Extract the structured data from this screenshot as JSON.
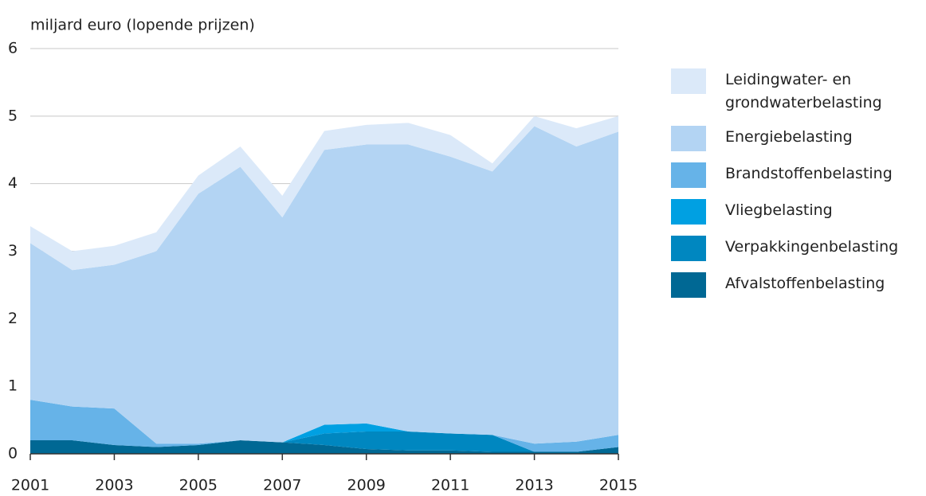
{
  "chart_data": {
    "type": "stacked_area",
    "y_axis_label": "miljard euro (lopende prijzen)",
    "x": [
      2001,
      2002,
      2003,
      2004,
      2005,
      2006,
      2007,
      2008,
      2009,
      2010,
      2011,
      2012,
      2013,
      2014,
      2015
    ],
    "xlim": [
      2001,
      2015
    ],
    "xticks": [
      2001,
      2003,
      2005,
      2007,
      2009,
      2011,
      2013,
      2015
    ],
    "ylim": [
      0,
      6
    ],
    "yticks": [
      0,
      1,
      2,
      3,
      4,
      5,
      6
    ],
    "grid": true,
    "legend": "right",
    "series": [
      {
        "name": "Leidingwater- en grondwaterbelasting",
        "color": "#dbe9f9",
        "values": [
          0.25,
          0.28,
          0.28,
          0.28,
          0.27,
          0.3,
          0.32,
          0.28,
          0.29,
          0.32,
          0.32,
          0.12,
          0.15,
          0.27,
          0.23
        ]
      },
      {
        "name": "Energiebelasting",
        "color": "#b3d4f3",
        "values": [
          2.32,
          2.02,
          2.13,
          2.85,
          3.7,
          4.05,
          3.33,
          4.07,
          4.13,
          4.25,
          4.1,
          3.9,
          4.7,
          4.37,
          4.49
        ]
      },
      {
        "name": "Brandstoffenbelasting",
        "color": "#66b3e8",
        "values": [
          0.6,
          0.5,
          0.54,
          0.05,
          0.02,
          0,
          0,
          0,
          0,
          0,
          0,
          0,
          0.12,
          0.15,
          0.18
        ]
      },
      {
        "name": "Vliegbelasting",
        "color": "#00a0e2",
        "values": [
          0,
          0,
          0,
          0,
          0,
          0,
          0,
          0.13,
          0.12,
          0,
          0,
          0,
          0,
          0,
          0
        ]
      },
      {
        "name": "Verpakkingenbelasting",
        "color": "#0087c0",
        "values": [
          0,
          0,
          0,
          0,
          0,
          0,
          0,
          0.17,
          0.26,
          0.28,
          0.25,
          0.25,
          0,
          0,
          0
        ]
      },
      {
        "name": "Afvalstoffenbelasting",
        "color": "#006894",
        "values": [
          0.2,
          0.2,
          0.13,
          0.1,
          0.13,
          0.2,
          0.17,
          0.13,
          0.07,
          0.05,
          0.05,
          0.03,
          0.03,
          0.03,
          0.1
        ]
      }
    ]
  }
}
